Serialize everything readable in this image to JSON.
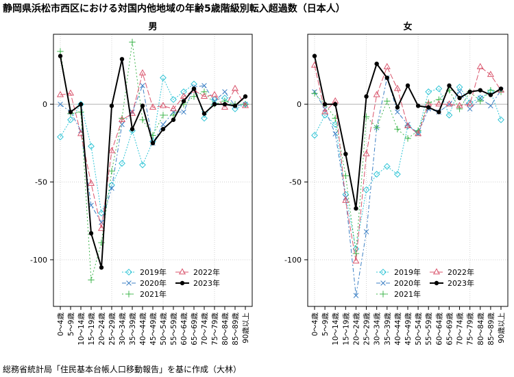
{
  "title": "静岡県浜松市西区における対国内他地域の年齢5歳階級別転入超過数（日本人）",
  "source": "総務省統計局「住民基本台帳人口移動報告」を基に作成（大林）",
  "chart_data": [
    {
      "type": "line",
      "title": "男",
      "categories": [
        "0～4歳",
        "5～9歳",
        "10～14歳",
        "15～19歳",
        "20～24歳",
        "25～29歳",
        "30～34歳",
        "35～39歳",
        "40～44歳",
        "45～49歳",
        "50～54歳",
        "55～59歳",
        "60～64歳",
        "65～69歳",
        "70～74歳",
        "75～79歳",
        "80～84歳",
        "85～89歳",
        "90歳以上"
      ],
      "yticks": [
        -100,
        -50,
        0
      ],
      "ylim": [
        -130,
        45
      ],
      "grid": true,
      "legend_position": "bottom-right",
      "series": [
        {
          "name": "2019年",
          "color": "#2ec4d6",
          "marker": "diamond",
          "dash": "2,2",
          "values": [
            -21,
            -10,
            0,
            -27,
            -70,
            -52,
            -38,
            -17,
            -39,
            -24,
            17,
            3,
            8,
            13,
            -9,
            3,
            4,
            -3,
            0
          ]
        },
        {
          "name": "2020年",
          "color": "#3b7fc4",
          "marker": "x",
          "dash": "6,3,2,3",
          "values": [
            0,
            -5,
            -17,
            -65,
            -76,
            -54,
            -13,
            -5,
            12,
            -25,
            -13,
            -5,
            -5,
            11,
            12,
            2,
            8,
            -1,
            0
          ]
        },
        {
          "name": "2021年",
          "color": "#3cb44b",
          "marker": "plus",
          "dash": "2,3",
          "values": [
            34,
            -6,
            -5,
            -113,
            -89,
            -43,
            -9,
            40,
            -10,
            -20,
            -7,
            -7,
            0,
            5,
            8,
            0,
            2,
            0,
            0
          ]
        },
        {
          "name": "2022年",
          "color": "#d9536b",
          "marker": "triangle",
          "dash": "8,3",
          "values": [
            6,
            7,
            -19,
            -51,
            -80,
            -30,
            -10,
            -6,
            20,
            -2,
            -1,
            -3,
            5,
            9,
            5,
            6,
            -2,
            10,
            -1
          ]
        },
        {
          "name": "2023年",
          "color": "#000000",
          "marker": "circle",
          "dash": "",
          "values": [
            31,
            -5,
            0,
            -83,
            -105,
            -1,
            29,
            -16,
            -1,
            -25,
            -16,
            -10,
            2,
            10,
            -6,
            0,
            0,
            -1,
            5
          ]
        }
      ]
    },
    {
      "type": "line",
      "title": "女",
      "categories": [
        "0～4歳",
        "5～9歳",
        "10～14歳",
        "15～19歳",
        "20～24歳",
        "25～29歳",
        "30～34歳",
        "35～39歳",
        "40～44歳",
        "45～49歳",
        "50～54歳",
        "55～59歳",
        "60～64歳",
        "65～69歳",
        "70～74歳",
        "75～79歳",
        "80～84歳",
        "85～89歳",
        "90歳以上"
      ],
      "yticks": [
        -100,
        -50,
        0
      ],
      "ylim": [
        -130,
        45
      ],
      "grid": true,
      "legend_position": "bottom-right",
      "series": [
        {
          "name": "2019年",
          "color": "#2ec4d6",
          "marker": "diamond",
          "dash": "2,2",
          "values": [
            -20,
            -7,
            -13,
            -58,
            -93,
            -55,
            -45,
            -40,
            -45,
            -14,
            -18,
            8,
            10,
            -7,
            11,
            1,
            4,
            8,
            -10
          ]
        },
        {
          "name": "2020年",
          "color": "#3b7fc4",
          "marker": "x",
          "dash": "6,3,2,3",
          "values": [
            8,
            -3,
            -19,
            -60,
            -123,
            -82,
            -15,
            17,
            -5,
            -13,
            -19,
            -3,
            -5,
            0,
            8,
            -3,
            4,
            -1,
            9
          ]
        },
        {
          "name": "2021年",
          "color": "#3cb44b",
          "marker": "plus",
          "dash": "2,3",
          "values": [
            7,
            0,
            -9,
            -46,
            -96,
            -8,
            -15,
            2,
            -16,
            -22,
            -17,
            1,
            3,
            9,
            -3,
            8,
            2,
            9,
            8
          ]
        },
        {
          "name": "2022年",
          "color": "#d9536b",
          "marker": "triangle",
          "dash": "8,3",
          "values": [
            25,
            -5,
            2,
            -62,
            -101,
            -32,
            6,
            24,
            10,
            -14,
            -19,
            0,
            0,
            0,
            -1,
            0,
            24,
            19,
            9
          ]
        },
        {
          "name": "2023年",
          "color": "#000000",
          "marker": "circle",
          "dash": "",
          "values": [
            31,
            0,
            0,
            -32,
            -67,
            5,
            26,
            17,
            -2,
            12,
            -1,
            -2,
            -5,
            12,
            4,
            8,
            9,
            6,
            10
          ]
        }
      ]
    }
  ]
}
